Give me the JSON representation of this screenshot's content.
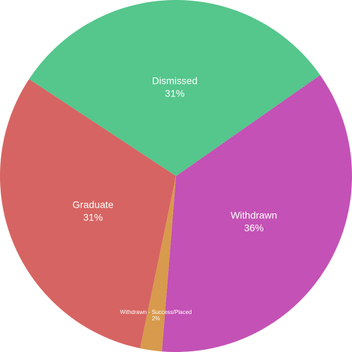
{
  "chart_data": {
    "type": "pie",
    "title": "",
    "slices": [
      {
        "label": "Withdrawn",
        "percent_label": "36%",
        "value": 36,
        "color": "#c451b5"
      },
      {
        "label": "Withdrawn - Success/Placed",
        "percent_label": "2%",
        "value": 2,
        "color": "#d89a4c"
      },
      {
        "label": "Graduate",
        "percent_label": "31%",
        "value": 31,
        "color": "#d66462"
      },
      {
        "label": "Dismissed",
        "percent_label": "31%",
        "value": 31,
        "color": "#55c68c"
      }
    ],
    "start_angle_deg": -35,
    "direction": "clockwise"
  }
}
